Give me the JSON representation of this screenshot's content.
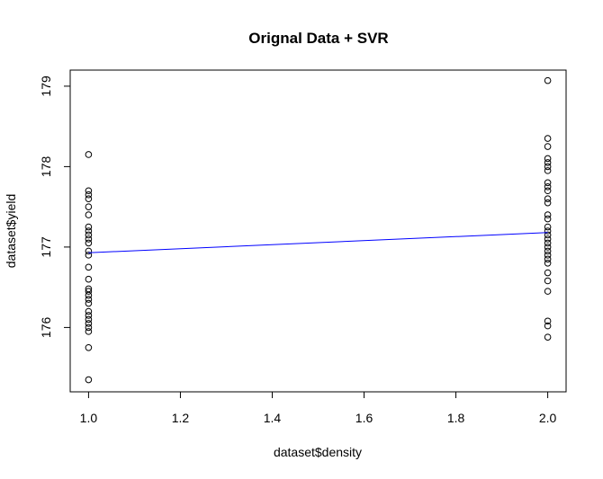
{
  "chart_data": {
    "type": "scatter",
    "title": "Orignal Data  + SVR",
    "xlabel": "dataset$density",
    "ylabel": "dataset$yield",
    "xlim": [
      0.96,
      2.04
    ],
    "ylim": [
      175.2,
      179.2
    ],
    "xticks": [
      1.0,
      1.2,
      1.4,
      1.6,
      1.8,
      2.0
    ],
    "xtick_labels": [
      "1.0",
      "1.2",
      "1.4",
      "1.6",
      "1.8",
      "2.0"
    ],
    "yticks": [
      176,
      177,
      178,
      179
    ],
    "ytick_labels": [
      "176",
      "177",
      "178",
      "179"
    ],
    "grid": false,
    "series": [
      {
        "kind": "points",
        "marker": "open-circle",
        "color": "#000000",
        "points": [
          [
            1,
            175.35
          ],
          [
            1,
            175.75
          ],
          [
            1,
            175.95
          ],
          [
            1,
            176.0
          ],
          [
            1,
            176.05
          ],
          [
            1,
            176.1
          ],
          [
            1,
            176.15
          ],
          [
            1,
            176.2
          ],
          [
            1,
            176.3
          ],
          [
            1,
            176.35
          ],
          [
            1,
            176.4
          ],
          [
            1,
            176.45
          ],
          [
            1,
            176.48
          ],
          [
            1,
            176.6
          ],
          [
            1,
            176.75
          ],
          [
            1,
            176.9
          ],
          [
            1,
            176.95
          ],
          [
            1,
            177.05
          ],
          [
            1,
            177.1
          ],
          [
            1,
            177.15
          ],
          [
            1,
            177.2
          ],
          [
            1,
            177.25
          ],
          [
            1,
            177.4
          ],
          [
            1,
            177.5
          ],
          [
            1,
            177.6
          ],
          [
            1,
            177.65
          ],
          [
            1,
            177.7
          ],
          [
            1,
            178.15
          ],
          [
            2,
            175.88
          ],
          [
            2,
            176.02
          ],
          [
            2,
            176.08
          ],
          [
            2,
            176.45
          ],
          [
            2,
            176.58
          ],
          [
            2,
            176.68
          ],
          [
            2,
            176.8
          ],
          [
            2,
            176.85
          ],
          [
            2,
            176.9
          ],
          [
            2,
            176.95
          ],
          [
            2,
            177.0
          ],
          [
            2,
            177.05
          ],
          [
            2,
            177.1
          ],
          [
            2,
            177.15
          ],
          [
            2,
            177.2
          ],
          [
            2,
            177.25
          ],
          [
            2,
            177.35
          ],
          [
            2,
            177.4
          ],
          [
            2,
            177.55
          ],
          [
            2,
            177.6
          ],
          [
            2,
            177.7
          ],
          [
            2,
            177.75
          ],
          [
            2,
            177.8
          ],
          [
            2,
            177.95
          ],
          [
            2,
            178.0
          ],
          [
            2,
            178.05
          ],
          [
            2,
            178.1
          ],
          [
            2,
            178.25
          ],
          [
            2,
            178.35
          ],
          [
            2,
            179.07
          ]
        ]
      },
      {
        "kind": "line",
        "color": "#0000ff",
        "points": [
          [
            1,
            176.93
          ],
          [
            2,
            177.18
          ]
        ]
      }
    ]
  }
}
